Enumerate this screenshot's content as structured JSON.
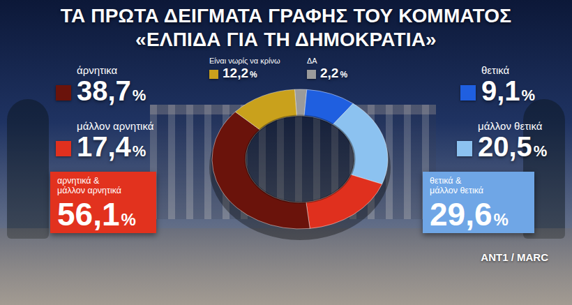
{
  "chart_data": {
    "type": "donut",
    "title": "ΤΑ ΠΡΩΤΑ ΔΕΙΓΜΑΤΑ ΓΡΑΦΗΣ ΤΟΥ ΚΟΜΜΑΤΟΣ",
    "subtitle": "«ΕΛΠΙΔΑ ΓΙΑ ΤΗ ΔΗΜΟΚΡΑΤΙΑ»",
    "categories": [
      "ΔΑ",
      "θετικά",
      "μάλλον θετικά",
      "μάλλον αρνητικά",
      "άρνητικα",
      "Είναι νωρίς να κρίνω"
    ],
    "values": [
      2.2,
      9.1,
      20.5,
      17.4,
      38.7,
      12.2
    ],
    "value_labels": [
      "2,2%",
      "9,1%",
      "20,5%",
      "17,4%",
      "38,7%",
      "12,2%"
    ],
    "colors": [
      "#9b9b9b",
      "#1f5fe0",
      "#8cc2f0",
      "#e0301e",
      "#6a130b",
      "#c9a11c"
    ],
    "data_labels": true,
    "annotations": [
      {
        "text": "αρνητικά &\nμάλλον αρνητικά",
        "label": "56,1%"
      },
      {
        "text": "θετικά &\nμάλλον θετικά",
        "label": "29,6%"
      }
    ],
    "source": "ANT1 / MARC"
  }
}
